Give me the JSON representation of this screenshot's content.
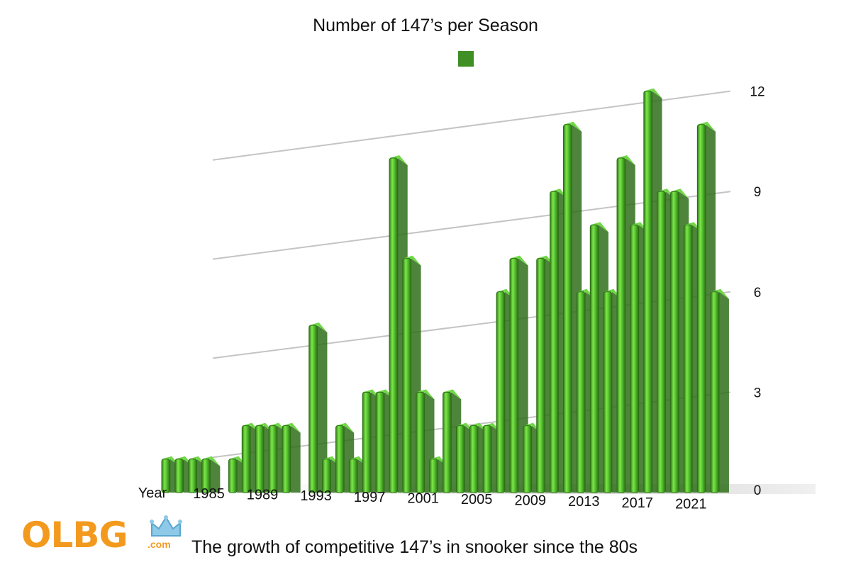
{
  "chart_data": {
    "type": "bar",
    "title": "Number of 147’s per Season",
    "x_axis_label": "Year",
    "tick_labels_x": [
      "1985",
      "1989",
      "1993",
      "1997",
      "2001",
      "2005",
      "2009",
      "2013",
      "2017",
      "2021"
    ],
    "tick_labels_y": [
      "0",
      "3",
      "6",
      "9",
      "12"
    ],
    "ylim": [
      0,
      12
    ],
    "grid": true,
    "legend": "top-center",
    "style": "3d",
    "bar_color": "#4fb82e",
    "categories": [
      "1982",
      "1983",
      "1984",
      "1985",
      "1986",
      "1987",
      "1988",
      "1989",
      "1990",
      "1991",
      "1992",
      "1993",
      "1994",
      "1995",
      "1996",
      "1997",
      "1998",
      "1999",
      "2000",
      "2001",
      "2002",
      "2003",
      "2004",
      "2005",
      "2006",
      "2007",
      "2008",
      "2009",
      "2010",
      "2011",
      "2012",
      "2013",
      "2014",
      "2015",
      "2016",
      "2017",
      "2018",
      "2019",
      "2020",
      "2021",
      "2022",
      "2023",
      "2024"
    ],
    "values": [
      1,
      1,
      1,
      1,
      0,
      1,
      2,
      2,
      2,
      2,
      0,
      5,
      1,
      2,
      1,
      3,
      3,
      10,
      7,
      3,
      1,
      3,
      2,
      2,
      2,
      6,
      7,
      2,
      7,
      9,
      11,
      6,
      8,
      6,
      10,
      8,
      12,
      9,
      9,
      8,
      11,
      6,
      0
    ]
  },
  "footer": {
    "logo_text": "OLBG",
    "logo_suffix": ".com",
    "caption": "The growth of competitive 147’s in snooker since the 80s"
  },
  "colors": {
    "bar": "#4fb82e",
    "logo": "#f39a1e"
  }
}
